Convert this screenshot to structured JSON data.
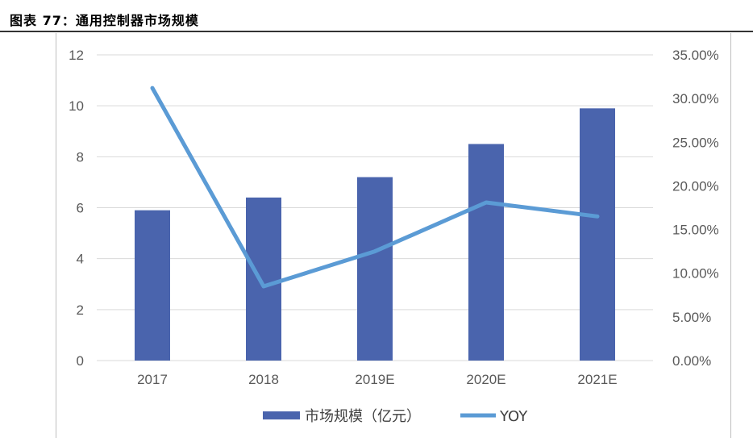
{
  "caption": "图表 77：通用控制器市场规模",
  "chart_data": {
    "type": "bar",
    "categories": [
      "2017",
      "2018",
      "2019E",
      "2020E",
      "2021E"
    ],
    "series": [
      {
        "name": "市场规模（亿元）",
        "type": "bar",
        "axis": "left",
        "color": "#4a64ad",
        "values": [
          5.9,
          6.4,
          7.2,
          8.5,
          9.9
        ]
      },
      {
        "name": "YOY",
        "type": "line",
        "axis": "right",
        "color": "#5b9bd5",
        "values": [
          0.312,
          0.085,
          0.125,
          0.181,
          0.165
        ]
      }
    ],
    "y_left": {
      "ylim": [
        0,
        12
      ],
      "ticks": [
        "0",
        "2",
        "4",
        "6",
        "8",
        "10",
        "12"
      ]
    },
    "y_right": {
      "ylim": [
        0,
        0.35
      ],
      "ticks": [
        "0.00%",
        "5.00%",
        "10.00%",
        "15.00%",
        "20.00%",
        "25.00%",
        "30.00%",
        "35.00%"
      ]
    },
    "grid": true,
    "legend_position": "bottom"
  }
}
